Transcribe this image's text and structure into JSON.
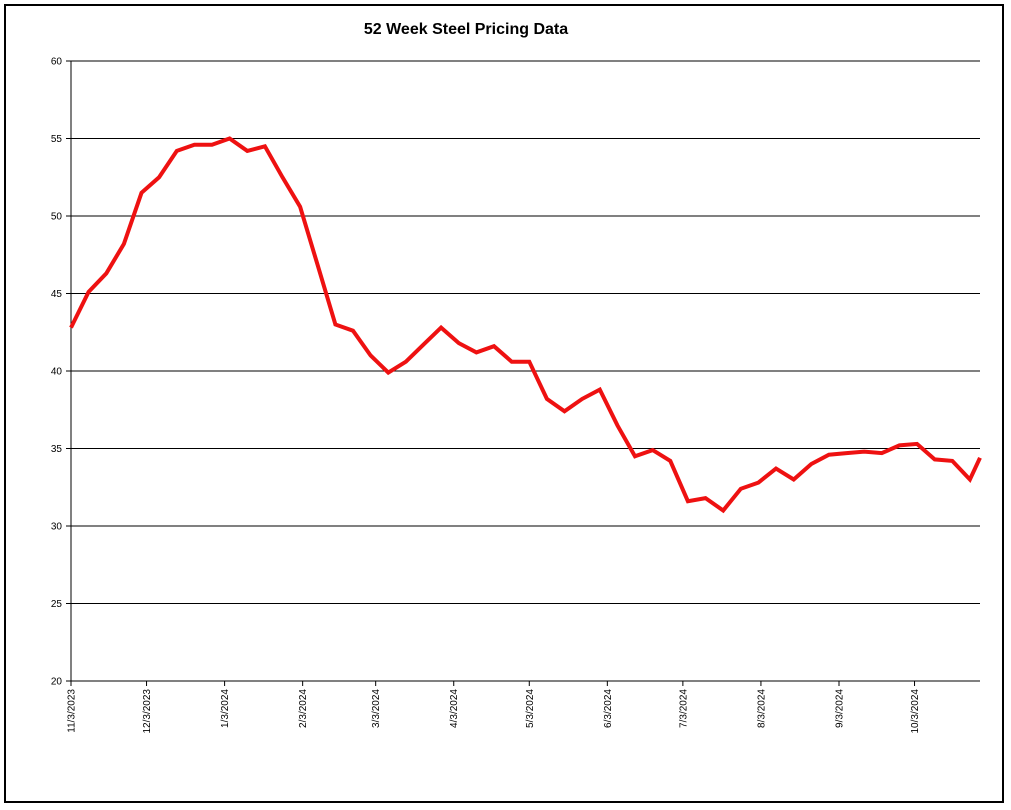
{
  "chart_data": {
    "type": "line",
    "title": "52 Week Steel Pricing Data",
    "xlabel": "",
    "ylabel": "",
    "ylim": [
      20,
      60
    ],
    "yticks": [
      20,
      25,
      30,
      35,
      40,
      45,
      50,
      55,
      60
    ],
    "grid": true,
    "legend": "none",
    "line_color": "#ee1111",
    "x_tick_labels": [
      "11/3/2023",
      "12/3/2023",
      "1/3/2024",
      "2/3/2024",
      "3/3/2024",
      "4/3/2024",
      "5/3/2024",
      "6/3/2024",
      "7/3/2024",
      "8/3/2024",
      "9/3/2024",
      "10/3/2024"
    ],
    "x_tick_dates": [
      "2023-11-03",
      "2023-12-03",
      "2024-01-03",
      "2024-02-03",
      "2024-03-03",
      "2024-04-03",
      "2024-05-03",
      "2024-06-03",
      "2024-07-03",
      "2024-08-03",
      "2024-09-03",
      "2024-10-03"
    ],
    "x_range": [
      "2023-11-03",
      "2024-10-29"
    ],
    "series": [
      {
        "x": [
          "2023-11-03",
          "2023-11-10",
          "2023-11-17",
          "2023-11-24",
          "2023-12-01",
          "2023-12-08",
          "2023-12-15",
          "2023-12-22",
          "2023-12-29",
          "2024-01-05",
          "2024-01-12",
          "2024-01-19",
          "2024-01-26",
          "2024-02-02",
          "2024-02-09",
          "2024-02-16",
          "2024-02-23",
          "2024-03-01",
          "2024-03-08",
          "2024-03-15",
          "2024-03-22",
          "2024-03-29",
          "2024-04-05",
          "2024-04-12",
          "2024-04-19",
          "2024-04-26",
          "2024-05-03",
          "2024-05-10",
          "2024-05-17",
          "2024-05-24",
          "2024-05-31",
          "2024-06-07",
          "2024-06-14",
          "2024-06-21",
          "2024-06-28",
          "2024-07-05",
          "2024-07-12",
          "2024-07-19",
          "2024-07-26",
          "2024-08-02",
          "2024-08-09",
          "2024-08-16",
          "2024-08-23",
          "2024-08-30",
          "2024-09-06",
          "2024-09-13",
          "2024-09-20",
          "2024-09-27",
          "2024-10-04",
          "2024-10-11",
          "2024-10-18",
          "2024-10-25",
          "2024-10-29"
        ],
        "values": [
          42.8,
          45.1,
          46.3,
          48.2,
          51.5,
          52.5,
          54.2,
          54.6,
          54.6,
          55.0,
          54.2,
          54.5,
          52.5,
          50.6,
          46.8,
          43.0,
          42.6,
          41.0,
          39.9,
          40.6,
          41.7,
          42.8,
          41.8,
          41.2,
          41.6,
          40.6,
          40.6,
          38.2,
          37.4,
          38.2,
          38.8,
          36.5,
          34.5,
          34.9,
          34.2,
          31.6,
          31.8,
          31.0,
          32.4,
          32.8,
          33.7,
          33.0,
          34.0,
          34.6,
          34.7,
          34.8,
          34.7,
          35.2,
          35.3,
          34.3,
          34.2,
          33.0,
          34.4
        ]
      }
    ]
  }
}
